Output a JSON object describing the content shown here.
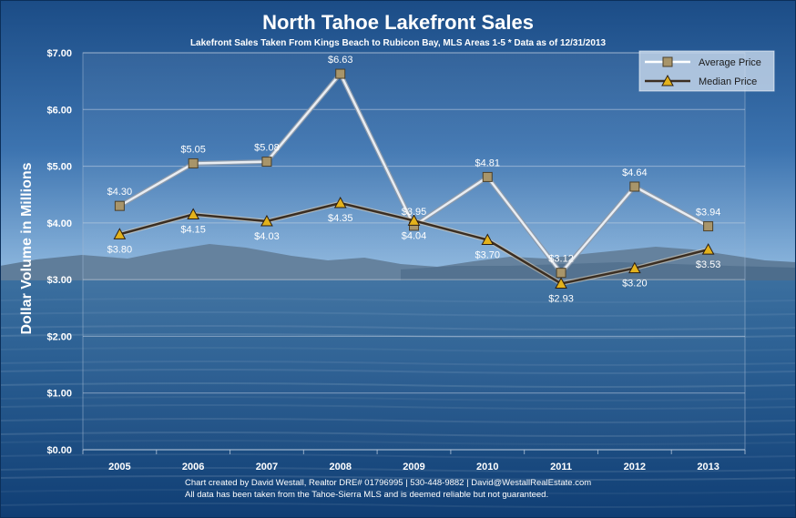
{
  "chart_data": {
    "type": "line",
    "title": "North Tahoe Lakefront Sales",
    "subtitle": "Lakefront Sales Taken From Kings Beach to Rubicon Bay, MLS Areas 1-5  * Data as of 12/31/2013",
    "xlabel": "",
    "ylabel": "Dollar Volume in Millions",
    "categories": [
      "2005",
      "2006",
      "2007",
      "2008",
      "2009",
      "2010",
      "2011",
      "2012",
      "2013"
    ],
    "y_ticks": [
      "$0.00",
      "$1.00",
      "$2.00",
      "$3.00",
      "$4.00",
      "$5.00",
      "$6.00",
      "$7.00"
    ],
    "ylim": [
      0,
      7
    ],
    "grid": true,
    "legend_position": "top-right",
    "series": [
      {
        "name": "Average Price",
        "values": [
          4.3,
          5.05,
          5.08,
          6.63,
          3.95,
          4.81,
          3.12,
          4.64,
          3.94
        ],
        "labels": [
          "$4.30",
          "$5.05",
          "$5.08",
          "$6.63",
          "$3.95",
          "$4.81",
          "$3.12",
          "$4.64",
          "$3.94"
        ],
        "line_color": "#e9edf2",
        "marker": "square",
        "marker_color": "#a8956a",
        "label_color": "#ffffff"
      },
      {
        "name": "Median Price",
        "values": [
          3.8,
          4.15,
          4.03,
          4.35,
          4.04,
          3.7,
          2.93,
          3.2,
          3.53
        ],
        "labels": [
          "$3.80",
          "$4.15",
          "$4.03",
          "$4.35",
          "$4.04",
          "$3.70",
          "$2.93",
          "$3.20",
          "$3.53"
        ],
        "line_color": "#3b2e22",
        "marker": "triangle",
        "marker_color": "#e3b21c",
        "label_color": "#ffffff"
      }
    ],
    "footer": [
      "Chart created by David Westall, Realtor DRE# 01796995 | 530-448-9882 | David@WestallRealEstate.com",
      "All data has been taken from the Tahoe-Sierra MLS and is deemed reliable but not guaranteed."
    ],
    "colors": {
      "sky_top": "#1d4f8a",
      "sky_bottom": "#4f86c1",
      "lake_top": "#2d6193",
      "lake_bottom": "#0f3f74",
      "mountain": "#5b7a98"
    }
  }
}
